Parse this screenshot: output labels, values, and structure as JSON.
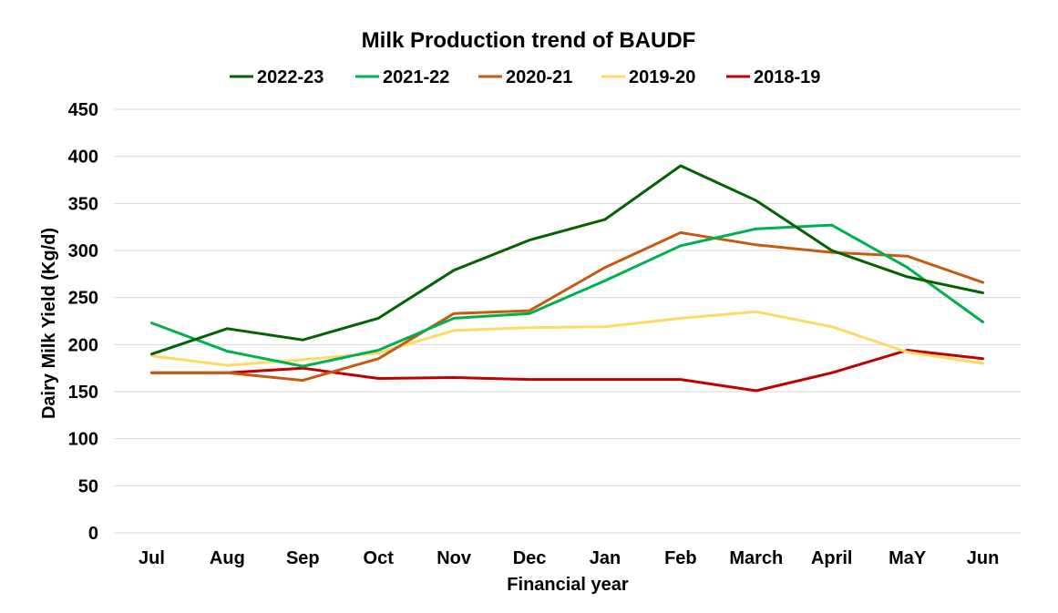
{
  "chart_data": {
    "type": "line",
    "title": "Milk Production trend of BAUDF",
    "xlabel": "Financial year",
    "ylabel": "Dairy Milk Yield (Kg/d)",
    "ylim": [
      0,
      450
    ],
    "yticks": [
      0,
      50,
      100,
      150,
      200,
      250,
      300,
      350,
      400,
      450
    ],
    "grid": true,
    "legend_position": "top",
    "categories": [
      "Jul",
      "Aug",
      "Sep",
      "Oct",
      "Nov",
      "Dec",
      "Jan",
      "Feb",
      "March",
      "April",
      "MaY",
      "Jun"
    ],
    "series": [
      {
        "name": "2022-23",
        "color": "#006400",
        "values": [
          190,
          217,
          205,
          228,
          279,
          311,
          333,
          390,
          353,
          300,
          272,
          255
        ]
      },
      {
        "name": "2021-22",
        "color": "#00b050",
        "values": [
          223,
          193,
          177,
          194,
          228,
          233,
          268,
          305,
          323,
          327,
          282,
          224
        ]
      },
      {
        "name": "2020-21",
        "color": "#c55a11",
        "values": [
          170,
          170,
          162,
          185,
          233,
          236,
          282,
          319,
          306,
          298,
          294,
          266
        ]
      },
      {
        "name": "2019-20",
        "color": "#ffd966",
        "values": [
          188,
          178,
          184,
          191,
          215,
          218,
          219,
          228,
          235,
          219,
          192,
          180
        ]
      },
      {
        "name": "2018-19",
        "color": "#c00000",
        "values": [
          170,
          170,
          175,
          164,
          165,
          163,
          163,
          163,
          151,
          170,
          194,
          185
        ]
      }
    ]
  }
}
